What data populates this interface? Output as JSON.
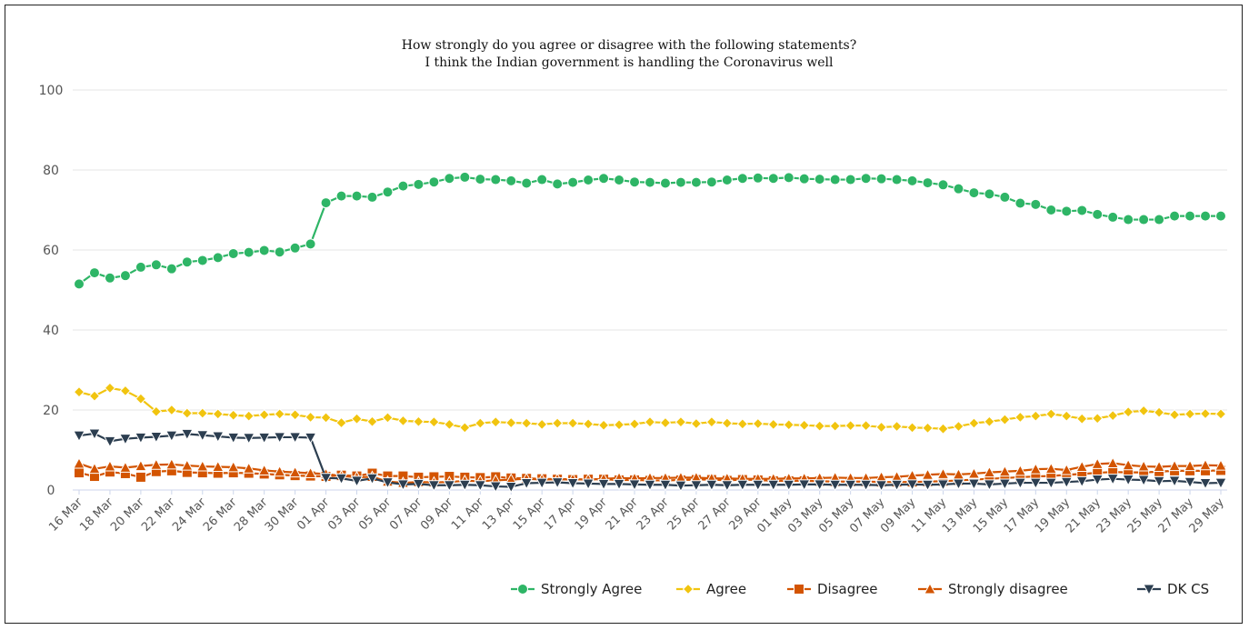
{
  "chart_data": {
    "type": "line",
    "title": "How strongly do you agree or disagree with the following statements?",
    "subtitle": "I think the Indian government is handling the Coronavirus well",
    "ylim": [
      0,
      100
    ],
    "yticks": [
      0,
      20,
      40,
      60,
      80,
      100
    ],
    "grid": true,
    "legend_position": "bottom-right",
    "x_tick_labels": [
      "16 Mar",
      "18 Mar",
      "20 Mar",
      "22 Mar",
      "24 Mar",
      "26 Mar",
      "28 Mar",
      "30 Mar",
      "01 Apr",
      "03 Apr",
      "05 Apr",
      "07 Apr",
      "09 Apr",
      "11 Apr",
      "13 Apr",
      "15 Apr",
      "17 Apr",
      "19 Apr",
      "21 Apr",
      "23 Apr",
      "25 Apr",
      "27 Apr",
      "29 Apr",
      "01 May",
      "03 May",
      "05 May",
      "07 May",
      "09 May",
      "11 May",
      "13 May",
      "15 May",
      "17 May",
      "19 May",
      "21 May",
      "23 May",
      "25 May",
      "27 May",
      "29 May"
    ],
    "x_start": "16 Mar",
    "series": [
      {
        "name": "Strongly Agree",
        "color": "#2eb566",
        "marker": "circle",
        "values": [
          51.5,
          54.3,
          53,
          53.6,
          55.7,
          56.3,
          55.3,
          57,
          57.4,
          58.1,
          59.1,
          59.4,
          59.9,
          59.5,
          60.5,
          61.5,
          71.8,
          73.5,
          73.5,
          73.2,
          74.5,
          76,
          76.4,
          77,
          77.9,
          78.2,
          77.7,
          77.6,
          77.3,
          76.7,
          77.6,
          76.5,
          76.9,
          77.5,
          77.9,
          77.5,
          77,
          76.9,
          76.7,
          76.9,
          76.9,
          77,
          77.5,
          77.9,
          78,
          77.9,
          78.1,
          77.8,
          77.7,
          77.6,
          77.6,
          77.9,
          77.8,
          77.6,
          77.3,
          76.8,
          76.3,
          75.3,
          74.3,
          74,
          73.2,
          71.7,
          71.4,
          70,
          69.7,
          69.9,
          68.9,
          68.2,
          67.6,
          67.6,
          67.6,
          68.5,
          68.5,
          68.5,
          68.5
        ]
      },
      {
        "name": "Agree",
        "color": "#f1c40f",
        "marker": "diamond",
        "values": [
          24.5,
          23.5,
          25.5,
          24.8,
          22.8,
          19.6,
          20,
          19.2,
          19.2,
          19,
          18.7,
          18.5,
          18.8,
          19,
          18.8,
          18.2,
          18.1,
          16.8,
          17.8,
          17.1,
          18.1,
          17.3,
          17.1,
          17,
          16.4,
          15.6,
          16.7,
          17,
          16.8,
          16.7,
          16.4,
          16.7,
          16.7,
          16.5,
          16.2,
          16.3,
          16.5,
          17,
          16.8,
          17,
          16.6,
          17,
          16.7,
          16.5,
          16.6,
          16.4,
          16.3,
          16.2,
          16,
          16,
          16.1,
          16.1,
          15.7,
          15.9,
          15.6,
          15.5,
          15.3,
          15.9,
          16.7,
          17.1,
          17.6,
          18.2,
          18.5,
          19,
          18.5,
          17.8,
          17.9,
          18.6,
          19.5,
          19.8,
          19.4,
          18.8,
          19,
          19.1,
          19
        ]
      },
      {
        "name": "Disagree",
        "color": "#d35400",
        "marker": "square",
        "values": [
          4.3,
          3.4,
          4.5,
          4.1,
          3.2,
          4.6,
          4.8,
          4.4,
          4.3,
          4.2,
          4.3,
          4.2,
          4.0,
          3.8,
          3.6,
          3.5,
          3.4,
          3.7,
          3.5,
          4.2,
          3.5,
          3.5,
          3.2,
          3.3,
          3.4,
          3.2,
          3.1,
          3.3,
          3.0,
          2.9,
          2.8,
          2.7,
          2.6,
          2.7,
          2.7,
          2.5,
          2.5,
          2.4,
          2.4,
          2.5,
          2.6,
          2.6,
          2.4,
          2.6,
          2.5,
          2.3,
          2.3,
          2.3,
          2.2,
          2.1,
          2.1,
          2.1,
          2.0,
          2.0,
          2.0,
          2.1,
          2.2,
          2.4,
          2.6,
          2.8,
          3.0,
          3.2,
          3.4,
          3.5,
          3.8,
          4.0,
          4.3,
          4.5,
          4.4,
          4.4,
          4.6,
          4.8,
          4.8,
          4.8,
          4.9
        ]
      },
      {
        "name": "Strongly disagree",
        "color": "#d35400",
        "marker": "triangle-up",
        "values": [
          6.6,
          5.3,
          5.9,
          5.6,
          6.0,
          6.3,
          6.4,
          6.1,
          5.9,
          5.8,
          5.7,
          5.4,
          4.9,
          4.6,
          4.4,
          4.2,
          4.0,
          3.5,
          3.2,
          3.3,
          2.1,
          1.8,
          2.0,
          1.9,
          2.0,
          2.3,
          2.2,
          2.4,
          2.6,
          2.8,
          2.6,
          2.7,
          2.7,
          2.6,
          2.8,
          3.0,
          2.9,
          3.0,
          3.0,
          3.1,
          3.1,
          2.9,
          2.9,
          2.8,
          2.8,
          2.8,
          2.9,
          2.9,
          3.0,
          3.1,
          3.0,
          3.0,
          3.2,
          3.3,
          3.6,
          3.8,
          4.0,
          3.9,
          4.1,
          4.4,
          4.6,
          4.8,
          5.2,
          5.3,
          5.0,
          5.8,
          6.5,
          6.7,
          6.2,
          5.9,
          5.8,
          6.0,
          6.0,
          6.2,
          6.1
        ]
      },
      {
        "name": "DK CS",
        "color": "#2c3e50",
        "marker": "triangle-down",
        "values": [
          13.6,
          14.1,
          12.2,
          12.8,
          13.1,
          13.3,
          13.6,
          14,
          13.7,
          13.4,
          13.1,
          13.0,
          13.1,
          13.2,
          13.2,
          13.1,
          3.0,
          2.9,
          2.3,
          2.9,
          1.9,
          1.4,
          1.5,
          1.2,
          1.2,
          1.3,
          1.2,
          0.9,
          0.8,
          1.7,
          1.8,
          1.9,
          1.7,
          1.6,
          1.5,
          1.5,
          1.4,
          1.3,
          1.3,
          1.1,
          1.2,
          1.3,
          1.2,
          1.3,
          1.3,
          1.3,
          1.3,
          1.4,
          1.4,
          1.3,
          1.3,
          1.3,
          1.2,
          1.3,
          1.4,
          1.3,
          1.4,
          1.6,
          1.6,
          1.4,
          1.6,
          1.8,
          1.8,
          1.8,
          2.0,
          2.2,
          2.6,
          2.8,
          2.6,
          2.5,
          2.2,
          2.3,
          2.0,
          1.7,
          1.8
        ]
      }
    ]
  }
}
